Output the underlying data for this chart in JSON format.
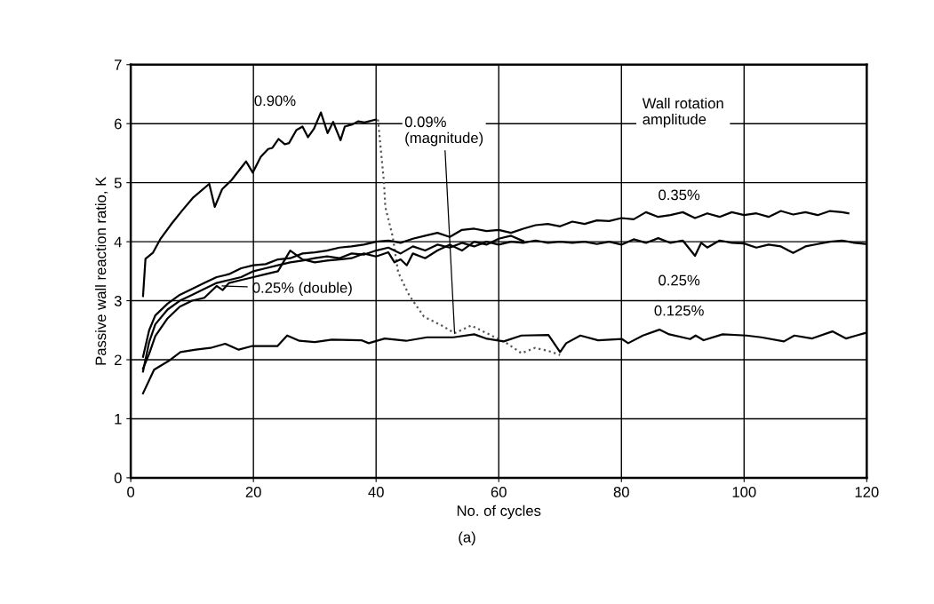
{
  "chart_data": {
    "type": "line",
    "xlabel": "No. of cycles",
    "ylabel": "Passive wall reaction ratio, K",
    "xlim": [
      0,
      120
    ],
    "ylim": [
      0,
      7
    ],
    "xticks": [
      0,
      20,
      40,
      60,
      80,
      100,
      120
    ],
    "yticks": [
      0,
      1,
      2,
      3,
      4,
      5,
      6,
      7
    ],
    "grid": true,
    "marker": "none",
    "series": [
      {
        "color": "#000000",
        "line_style": "solid",
        "x": [
          2,
          2.4,
          3.6,
          4.8,
          6.7,
          8.4,
          10.1,
          12.8,
          13.7,
          14.9,
          16.4,
          18.8,
          19.9,
          21.2,
          22.4,
          23.1,
          24.1,
          25.1,
          25.8,
          27,
          28,
          28.9,
          29.9,
          31,
          32.1,
          33,
          34.2,
          34.9,
          36.2,
          37.1,
          38.1,
          40
        ],
        "values": [
          3.08,
          3.71,
          3.81,
          4.04,
          4.31,
          4.53,
          4.74,
          4.98,
          4.59,
          4.89,
          5.04,
          5.36,
          5.17,
          5.44,
          5.57,
          5.59,
          5.74,
          5.65,
          5.67,
          5.89,
          5.95,
          5.77,
          5.92,
          6.19,
          5.84,
          6.03,
          5.72,
          5.95,
          5.99,
          6.04,
          6.02,
          6.07
        ]
      },
      {
        "color": "#555555",
        "line_style": "dotted",
        "x": [
          40.3,
          41.3,
          41.5,
          42.7,
          43.6,
          45.4,
          47.8,
          50.7,
          52.8,
          55.5,
          58.8,
          61.3,
          63.7,
          65.9,
          68.1,
          70
        ],
        "values": [
          6.07,
          4.99,
          4.59,
          4.09,
          3.48,
          3.09,
          2.73,
          2.58,
          2.45,
          2.58,
          2.41,
          2.28,
          2.11,
          2.2,
          2.15,
          2.08
        ]
      },
      {
        "color": "#000000",
        "line_style": "solid",
        "x": [
          2,
          3,
          4,
          6,
          8,
          10,
          12,
          14,
          16,
          18,
          20,
          22,
          24,
          26,
          28,
          30,
          32,
          34,
          36,
          38,
          40,
          42,
          44,
          46,
          48,
          50,
          52,
          54,
          56,
          58,
          60,
          62,
          64,
          66,
          68,
          70,
          72,
          74,
          76,
          78,
          80,
          82,
          84,
          86,
          88,
          90,
          92,
          94,
          96,
          98,
          100,
          102,
          104,
          106,
          108,
          110,
          112,
          114,
          116,
          117
        ],
        "values": [
          2.05,
          2.5,
          2.75,
          2.95,
          3.1,
          3.2,
          3.3,
          3.4,
          3.45,
          3.55,
          3.6,
          3.62,
          3.7,
          3.72,
          3.8,
          3.82,
          3.85,
          3.9,
          3.92,
          3.95,
          4.0,
          4.02,
          3.98,
          4.05,
          4.1,
          4.15,
          4.08,
          4.2,
          4.22,
          4.18,
          4.2,
          4.15,
          4.22,
          4.28,
          4.3,
          4.26,
          4.34,
          4.3,
          4.36,
          4.35,
          4.4,
          4.38,
          4.5,
          4.42,
          4.45,
          4.5,
          4.4,
          4.48,
          4.42,
          4.5,
          4.45,
          4.48,
          4.42,
          4.52,
          4.46,
          4.5,
          4.45,
          4.52,
          4.5,
          4.48
        ]
      },
      {
        "color": "#000000",
        "line_style": "solid",
        "x": [
          2,
          3,
          4,
          6,
          8,
          10,
          12,
          14,
          16,
          18,
          20,
          22,
          24,
          26,
          28,
          30,
          32,
          34,
          36,
          38,
          40,
          42,
          44,
          46,
          48,
          50,
          52,
          54,
          56,
          58,
          60,
          62,
          64,
          66,
          68,
          70,
          72,
          74,
          76,
          78,
          80,
          82,
          84,
          86,
          88,
          90,
          92,
          93,
          94,
          96,
          98,
          100,
          102,
          104,
          106,
          108,
          110,
          112,
          114,
          116,
          118,
          120
        ],
        "values": [
          1.8,
          2.3,
          2.6,
          2.85,
          3.0,
          3.1,
          3.2,
          3.3,
          3.35,
          3.4,
          3.5,
          3.55,
          3.6,
          3.65,
          3.68,
          3.72,
          3.75,
          3.72,
          3.8,
          3.78,
          3.85,
          3.9,
          3.8,
          3.92,
          3.85,
          3.95,
          3.9,
          3.98,
          3.92,
          4.0,
          3.95,
          4.0,
          3.98,
          4.02,
          3.98,
          4.0,
          3.98,
          4.0,
          3.96,
          4.0,
          3.95,
          4.04,
          3.98,
          4.06,
          3.98,
          4.02,
          3.76,
          3.98,
          3.9,
          4.02,
          3.98,
          3.97,
          3.9,
          3.95,
          3.92,
          3.81,
          3.92,
          3.96,
          4.0,
          4.02,
          3.98,
          3.96
        ]
      },
      {
        "color": "#000000",
        "line_style": "solid",
        "x": [
          2,
          3,
          4,
          6,
          8,
          10,
          12,
          14,
          15,
          16,
          18,
          20,
          22,
          24,
          26,
          28,
          30,
          32,
          34,
          36,
          38,
          40,
          42,
          43,
          44,
          45,
          46,
          48,
          50,
          52,
          54,
          56,
          58,
          60,
          62,
          64
        ],
        "values": [
          1.85,
          2.1,
          2.4,
          2.7,
          2.9,
          3.0,
          3.05,
          3.25,
          3.18,
          3.3,
          3.35,
          3.4,
          3.45,
          3.5,
          3.85,
          3.7,
          3.65,
          3.68,
          3.7,
          3.72,
          3.8,
          3.75,
          3.82,
          3.65,
          3.7,
          3.6,
          3.8,
          3.72,
          3.85,
          3.95,
          3.85,
          4.0,
          3.95,
          4.05,
          4.1,
          4.01
        ]
      },
      {
        "color": "#000000",
        "line_style": "solid",
        "x": [
          2,
          3.8,
          6.2,
          8.1,
          10.6,
          13,
          15.4,
          17.6,
          19.7,
          23.9,
          25.5,
          27.5,
          30,
          32.8,
          37.6,
          38.8,
          41.4,
          44.9,
          48.3,
          52.6,
          56,
          57.9,
          60.8,
          63.7,
          68.1,
          70,
          71,
          73.3,
          76.2,
          80.1,
          81.1,
          83.5,
          86.2,
          87.8,
          91.2,
          92.1,
          93.4,
          96.5,
          100.4,
          102.8,
          106.5,
          108.2,
          111.1,
          114.4,
          116.6,
          118.3,
          120
        ],
        "values": [
          1.43,
          1.83,
          1.98,
          2.13,
          2.17,
          2.2,
          2.27,
          2.17,
          2.23,
          2.23,
          2.41,
          2.32,
          2.3,
          2.34,
          2.33,
          2.28,
          2.36,
          2.32,
          2.38,
          2.38,
          2.43,
          2.36,
          2.31,
          2.41,
          2.42,
          2.13,
          2.28,
          2.41,
          2.33,
          2.35,
          2.28,
          2.41,
          2.51,
          2.43,
          2.35,
          2.41,
          2.33,
          2.43,
          2.41,
          2.38,
          2.31,
          2.41,
          2.36,
          2.48,
          2.36,
          2.41,
          2.46
        ]
      }
    ],
    "annotations": [
      "0.90%",
      {
        "text": "0.09%\n(magnitude)",
        "x": 52.8,
        "y": 2.45
      },
      {
        "text": "0.25% (double)",
        "x": 14.9,
        "y": 3.25
      },
      "0.35%",
      "0.25%",
      "0.125%",
      "Wall rotation\namplitude",
      "(a)"
    ]
  }
}
